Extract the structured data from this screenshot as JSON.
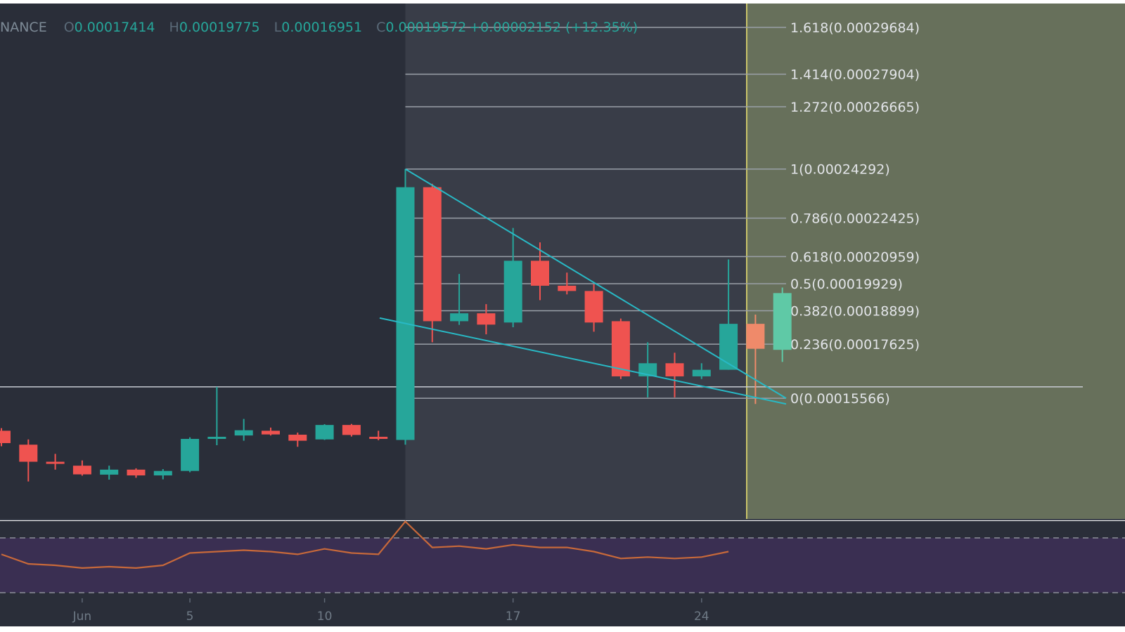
{
  "header": {
    "exchange": "NANCE",
    "open_label": "O",
    "open": "0.00017414",
    "high_label": "H",
    "high": "0.00019775",
    "low_label": "L",
    "low": "0.00016951",
    "close_label": "C",
    "close": "0.00019572",
    "change": "+0.00002152 (+12.35%)"
  },
  "colors": {
    "background": "#2a2e39",
    "bull": "#26a69a",
    "bear": "#ef5350",
    "projection_zone": "#67705b",
    "fib_zone": "#464a55",
    "rsi_band": "#3a2f52",
    "rsi_line": "#c8693a",
    "trendline": "#28b9c5",
    "fib_line": "#9aa0a8"
  },
  "chart_data": {
    "type": "candlestick",
    "x_ticks": [
      "Jun",
      "5",
      "10",
      "17",
      "24"
    ],
    "fib_levels": [
      {
        "label": "1.618(0.00029684)",
        "ratio": 1.618,
        "price": 0.00029684
      },
      {
        "label": "1.414(0.00027904)",
        "ratio": 1.414,
        "price": 0.00027904
      },
      {
        "label": "1.272(0.00026665)",
        "ratio": 1.272,
        "price": 0.00026665
      },
      {
        "label": "1(0.00024292)",
        "ratio": 1,
        "price": 0.00024292
      },
      {
        "label": "0.786(0.00022425)",
        "ratio": 0.786,
        "price": 0.00022425
      },
      {
        "label": "0.618(0.00020959)",
        "ratio": 0.618,
        "price": 0.00020959
      },
      {
        "label": "0.5(0.00019929)",
        "ratio": 0.5,
        "price": 0.00019929
      },
      {
        "label": "0.382(0.00018899)",
        "ratio": 0.382,
        "price": 0.00018899
      },
      {
        "label": "0.236(0.00017625)",
        "ratio": 0.236,
        "price": 0.00017625
      },
      {
        "label": "0(0.00015566)",
        "ratio": 0,
        "price": 0.00015566
      }
    ],
    "horizontal_line": 0.00016,
    "candles": [
      {
        "o": 0.0001433,
        "h": 0.0001443,
        "l": 0.0001374,
        "c": 0.0001386
      },
      {
        "o": 0.000138,
        "h": 0.00014,
        "l": 0.000124,
        "c": 0.0001315
      },
      {
        "o": 0.0001315,
        "h": 0.0001345,
        "l": 0.0001285,
        "c": 0.0001308
      },
      {
        "o": 0.00013,
        "h": 0.000132,
        "l": 0.0001262,
        "c": 0.0001267
      },
      {
        "o": 0.0001266,
        "h": 0.00013,
        "l": 0.0001247,
        "c": 0.0001285
      },
      {
        "o": 0.0001285,
        "h": 0.000129,
        "l": 0.0001254,
        "c": 0.0001263
      },
      {
        "o": 0.0001263,
        "h": 0.0001287,
        "l": 0.0001248,
        "c": 0.000128
      },
      {
        "o": 0.000128,
        "h": 0.0001408,
        "l": 0.0001275,
        "c": 0.0001402
      },
      {
        "o": 0.0001402,
        "h": 0.00016,
        "l": 0.0001378,
        "c": 0.000141
      },
      {
        "o": 0.0001415,
        "h": 0.0001478,
        "l": 0.0001395,
        "c": 0.0001435
      },
      {
        "o": 0.0001433,
        "h": 0.0001445,
        "l": 0.0001415,
        "c": 0.0001419
      },
      {
        "o": 0.0001418,
        "h": 0.0001426,
        "l": 0.0001372,
        "c": 0.0001395
      },
      {
        "o": 0.00014,
        "h": 0.0001458,
        "l": 0.0001398,
        "c": 0.0001455
      },
      {
        "o": 0.0001455,
        "h": 0.0001459,
        "l": 0.0001411,
        "c": 0.0001417
      },
      {
        "o": 0.000141,
        "h": 0.0001433,
        "l": 0.0001397,
        "c": 0.0001404
      },
      {
        "o": 0.0001398,
        "h": 0.0002429,
        "l": 0.000138,
        "c": 0.000236
      },
      {
        "o": 0.000236,
        "h": 0.0002373,
        "l": 0.000177,
        "c": 0.000185
      },
      {
        "o": 0.000185,
        "h": 0.000203,
        "l": 0.0001836,
        "c": 0.000188
      },
      {
        "o": 0.000188,
        "h": 0.0001915,
        "l": 0.00018,
        "c": 0.0001837
      },
      {
        "o": 0.0001845,
        "h": 0.0002205,
        "l": 0.0001827,
        "c": 0.000208
      },
      {
        "o": 0.000208,
        "h": 0.000215,
        "l": 0.000193,
        "c": 0.0001985
      },
      {
        "o": 0.0001985,
        "h": 0.0002035,
        "l": 0.0001952,
        "c": 0.0001965
      },
      {
        "o": 0.0001965,
        "h": 0.000199,
        "l": 0.000181,
        "c": 0.0001845
      },
      {
        "o": 0.000185,
        "h": 0.000186,
        "l": 0.000163,
        "c": 0.000164
      },
      {
        "o": 0.000164,
        "h": 0.000177,
        "l": 0.000156,
        "c": 0.000169
      },
      {
        "o": 0.000169,
        "h": 0.000173,
        "l": 0.000156,
        "c": 0.000164
      },
      {
        "o": 0.000164,
        "h": 0.000169,
        "l": 0.000163,
        "c": 0.0001665
      },
      {
        "o": 0.0001665,
        "h": 0.0002085,
        "l": 0.0001665,
        "c": 0.000184
      },
      {
        "o": 0.000184,
        "h": 0.0001875,
        "l": 0.0001535,
        "c": 0.0001745
      },
      {
        "o": 0.0001741,
        "h": 0.0001978,
        "l": 0.0001695,
        "c": 0.0001957
      }
    ],
    "rsi": [
      60,
      53,
      52,
      50,
      51,
      50,
      52,
      61,
      62,
      63,
      62,
      60,
      64,
      61,
      60,
      84,
      65,
      66,
      64,
      67,
      65,
      65,
      62,
      57,
      58,
      57,
      58,
      62
    ]
  }
}
